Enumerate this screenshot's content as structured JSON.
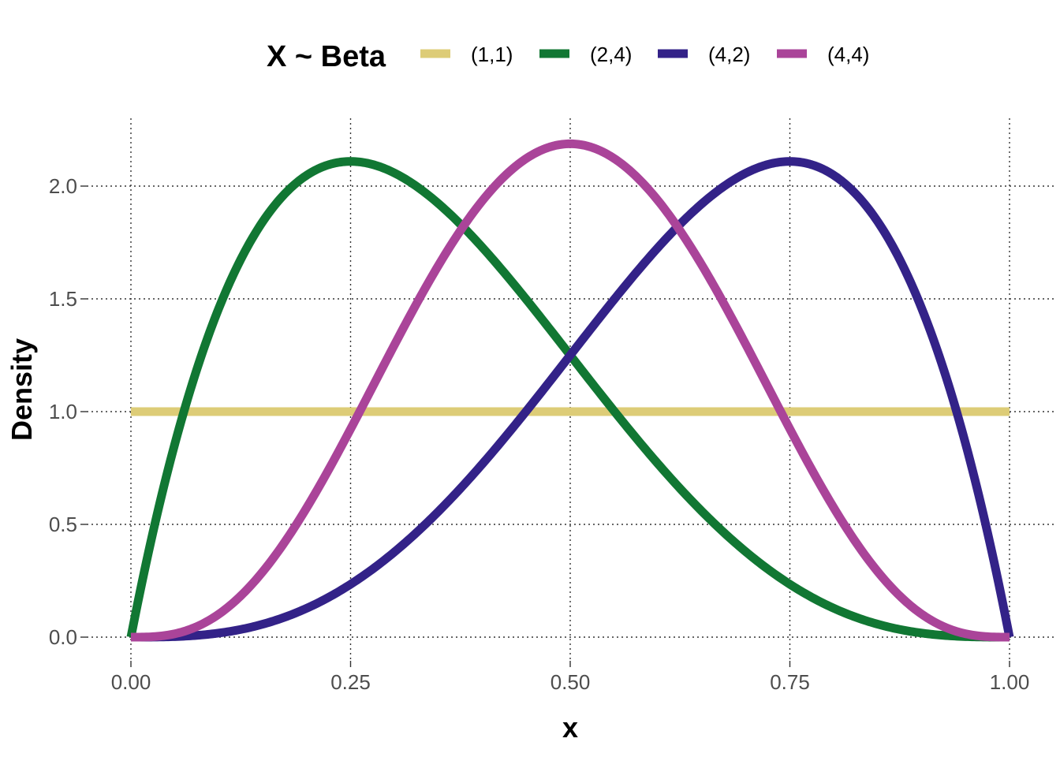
{
  "chart_data": {
    "type": "line",
    "title": "",
    "xlabel": "x",
    "ylabel": "Density",
    "xlim": [
      0,
      1
    ],
    "ylim": [
      0,
      2.2
    ],
    "x_ticks": [
      0,
      0.25,
      0.5,
      0.75,
      1.0
    ],
    "x_tick_labels": [
      "0.00",
      "0.25",
      "0.50",
      "0.75",
      "1.00"
    ],
    "y_ticks": [
      0,
      0.5,
      1.0,
      1.5,
      2.0
    ],
    "y_tick_labels": [
      "0.0",
      "0.5",
      "1.0",
      "1.5",
      "2.0"
    ],
    "grid": true,
    "legend": {
      "title": "X ~ Beta",
      "placement": "top"
    },
    "series": [
      {
        "name": "(1,1)",
        "alpha": 1,
        "beta": 1,
        "color": "#DDCC77",
        "x": [
          0,
          0.1,
          0.2,
          0.3,
          0.4,
          0.5,
          0.6,
          0.7,
          0.8,
          0.9,
          1.0
        ],
        "y": [
          1,
          1,
          1,
          1,
          1,
          1,
          1,
          1,
          1,
          1,
          1
        ]
      },
      {
        "name": "(2,4)",
        "alpha": 2,
        "beta": 4,
        "color": "#117733",
        "x": [
          0,
          0.1,
          0.2,
          0.25,
          0.3,
          0.4,
          0.5,
          0.6,
          0.7,
          0.8,
          0.9,
          1.0
        ],
        "y": [
          0,
          1.458,
          2.048,
          2.109,
          2.058,
          1.728,
          1.25,
          0.768,
          0.378,
          0.128,
          0.018,
          0
        ]
      },
      {
        "name": "(4,2)",
        "alpha": 4,
        "beta": 2,
        "color": "#332288",
        "x": [
          0,
          0.1,
          0.2,
          0.3,
          0.4,
          0.5,
          0.6,
          0.7,
          0.75,
          0.8,
          0.9,
          1.0
        ],
        "y": [
          0,
          0.018,
          0.128,
          0.378,
          0.768,
          1.25,
          1.728,
          2.058,
          2.109,
          2.048,
          1.458,
          0
        ]
      },
      {
        "name": "(4,4)",
        "alpha": 4,
        "beta": 4,
        "color": "#AA4499",
        "x": [
          0,
          0.1,
          0.2,
          0.3,
          0.4,
          0.5,
          0.6,
          0.7,
          0.8,
          0.9,
          1.0
        ],
        "y": [
          0,
          0.102,
          0.573,
          1.296,
          1.935,
          2.188,
          1.935,
          1.296,
          0.573,
          0.102,
          0
        ]
      }
    ]
  }
}
